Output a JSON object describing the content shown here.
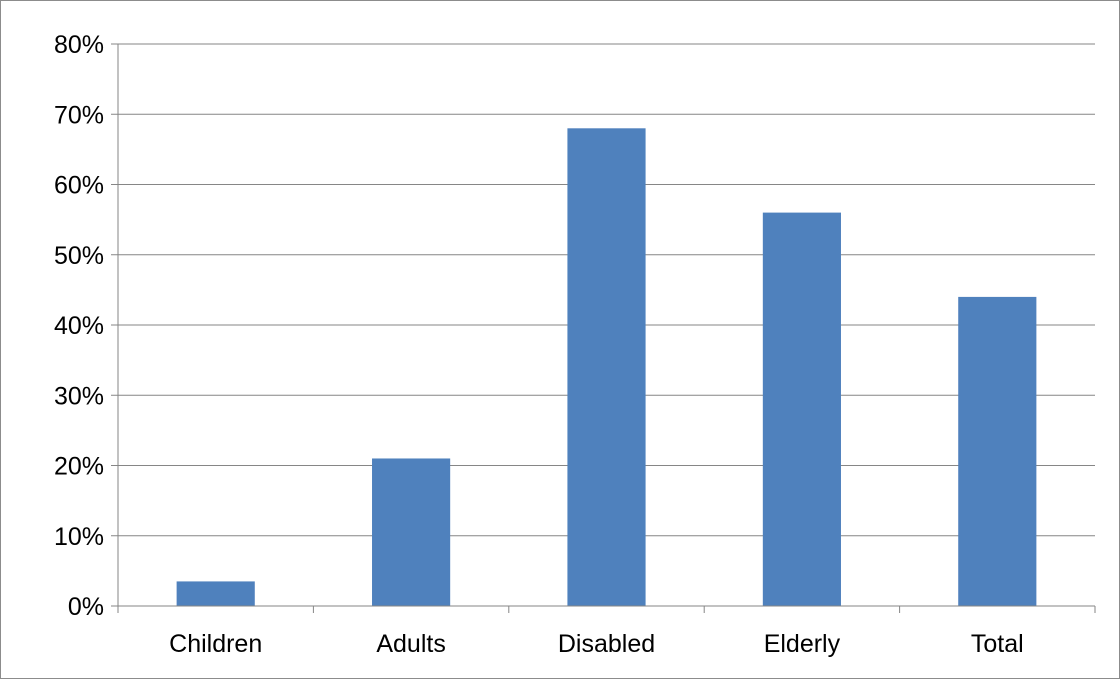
{
  "chart_data": {
    "type": "bar",
    "title": "",
    "xlabel": "",
    "ylabel": "",
    "categories": [
      "Children",
      "Adults",
      "Disabled",
      "Elderly",
      "Total"
    ],
    "values": [
      3.5,
      21,
      68,
      56,
      44
    ],
    "ylim": [
      0,
      80
    ],
    "yticks": [
      0,
      10,
      20,
      30,
      40,
      50,
      60,
      70,
      80
    ],
    "ytick_labels": [
      "0%",
      "10%",
      "20%",
      "30%",
      "40%",
      "50%",
      "60%",
      "70%",
      "80%"
    ],
    "grid": true,
    "legend": "none",
    "bar_color": "#4F81BD",
    "grid_color": "#868686",
    "axis_color": "#868686"
  }
}
